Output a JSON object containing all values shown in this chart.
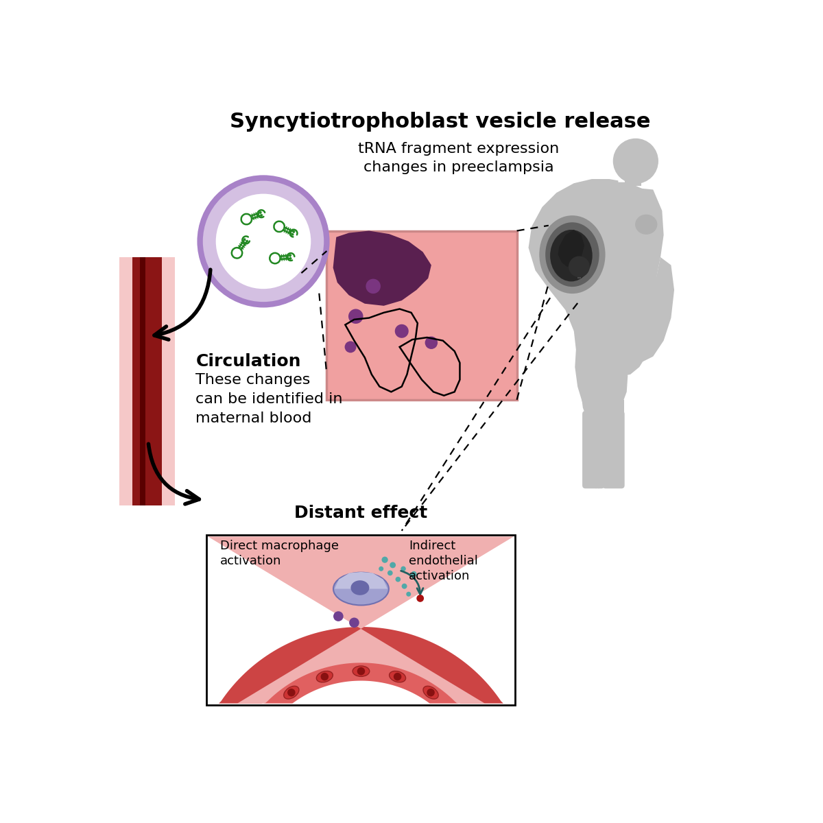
{
  "bg_color": "#ffffff",
  "title": "Syncytiotrophoblast vesicle release",
  "title_fontsize": 22,
  "subtitle": "tRNA fragment expression\nchanges in preeclampsia",
  "subtitle_fontsize": 16,
  "circulation_label": "Circulation",
  "circulation_fontsize": 18,
  "circulation_body": "These changes\ncan be identified in\nmaternal blood",
  "circulation_body_fontsize": 16,
  "distant_label": "Distant effect",
  "distant_fontsize": 18,
  "direct_label": "Direct macrophage\nactivation",
  "indirect_label": "Indirect\nendothelial\nactivation",
  "vesicle_fill": "#d4c0e2",
  "vesicle_ring": "#a882c8",
  "trna_color": "#228822",
  "body_color": "#c0c0c0",
  "placenta_bg": "#f0a0a0",
  "plac_blob": "#5a2050",
  "plac_dot": "#7a3580",
  "womb_1": "#909090",
  "womb_2": "#606060",
  "womb_3": "#282828",
  "vessel_wall": "#cc4444",
  "vessel_lumen": "#f0b0b0",
  "vessel_cell": "#cc3333",
  "macro_fill": "#9898c8",
  "macro_nuc": "#6060a8",
  "teal_color": "#308888",
  "purple_dot": "#704090",
  "dark_teal_arrow": "#206060"
}
